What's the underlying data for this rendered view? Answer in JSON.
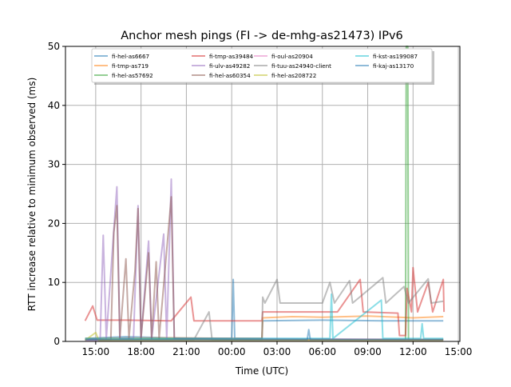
{
  "chart_data": {
    "type": "line",
    "title": "Anchor mesh pings (FI -> de-mhg-as21473) IPv6",
    "xlabel": "Time (UTC)",
    "ylabel": "RTT increase relative to minimum observed (ms)",
    "x_unit": "hours since 00:00 of first day",
    "xlim": [
      13.0,
      39.1
    ],
    "ylim": [
      0,
      50
    ],
    "grid": true,
    "legend_placement": "top-center",
    "xticks": [
      {
        "value": 15,
        "label": "15:00"
      },
      {
        "value": 18,
        "label": "18:00"
      },
      {
        "value": 21,
        "label": "21:00"
      },
      {
        "value": 24,
        "label": "00:00"
      },
      {
        "value": 27,
        "label": "03:00"
      },
      {
        "value": 30,
        "label": "06:00"
      },
      {
        "value": 33,
        "label": "09:00"
      },
      {
        "value": 36,
        "label": "12:00"
      },
      {
        "value": 39,
        "label": "15:00"
      }
    ],
    "yticks": [
      {
        "value": 0,
        "label": "0"
      },
      {
        "value": 10,
        "label": "10"
      },
      {
        "value": 20,
        "label": "20"
      },
      {
        "value": 30,
        "label": "30"
      },
      {
        "value": 40,
        "label": "40"
      },
      {
        "value": 50,
        "label": "50"
      }
    ],
    "series": [
      {
        "name": "fi-hel-as6667",
        "color": "#1f77b4",
        "points": [
          [
            14.3,
            0.5
          ],
          [
            17,
            0.8
          ],
          [
            20,
            0.6
          ],
          [
            24,
            0.5
          ],
          [
            24.1,
            10.5
          ],
          [
            24.2,
            0.5
          ],
          [
            26,
            0.5
          ],
          [
            26.05,
            3.5
          ],
          [
            30,
            3.6
          ],
          [
            34,
            3.5
          ],
          [
            38,
            3.5
          ]
        ]
      },
      {
        "name": "fi-tmp-as719",
        "color": "#ff7f0e",
        "points": [
          [
            14.3,
            0.5
          ],
          [
            20,
            0.6
          ],
          [
            26,
            0.5
          ],
          [
            26.05,
            4
          ],
          [
            28,
            4.2
          ],
          [
            30,
            4.1
          ],
          [
            33,
            4.3
          ],
          [
            36,
            4.0
          ],
          [
            38,
            4.2
          ]
        ]
      },
      {
        "name": "fi-hel-as57692",
        "color": "#2ca02c",
        "points": [
          [
            14.3,
            0.3
          ],
          [
            20,
            0.4
          ],
          [
            30,
            0.3
          ],
          [
            35.5,
            0.3
          ],
          [
            35.55,
            50
          ],
          [
            35.65,
            50
          ],
          [
            35.7,
            0.3
          ],
          [
            38,
            0.3
          ]
        ]
      },
      {
        "name": "fi-tmp-as39484",
        "color": "#d62728",
        "points": [
          [
            14.3,
            3.5
          ],
          [
            14.8,
            6
          ],
          [
            15.1,
            3.6
          ],
          [
            17,
            3.6
          ],
          [
            20,
            3.5
          ],
          [
            21.3,
            7.5
          ],
          [
            21.5,
            3.5
          ],
          [
            26,
            3.5
          ],
          [
            26.05,
            5
          ],
          [
            29,
            5
          ],
          [
            31,
            5
          ],
          [
            32.5,
            10.5
          ],
          [
            32.7,
            5
          ],
          [
            35,
            4.8
          ],
          [
            35.1,
            1
          ],
          [
            35.5,
            1
          ],
          [
            35.6,
            9
          ],
          [
            35.9,
            5
          ],
          [
            36,
            12.5
          ],
          [
            36.3,
            5
          ],
          [
            37,
            10
          ],
          [
            37.3,
            5
          ],
          [
            38,
            10.5
          ],
          [
            38.05,
            5
          ]
        ]
      },
      {
        "name": "fi-ulv-as49282",
        "color": "#9467bd",
        "points": [
          [
            14.3,
            0.3
          ],
          [
            15.3,
            0.5
          ],
          [
            15.5,
            18
          ],
          [
            15.7,
            0.5
          ],
          [
            16.2,
            19
          ],
          [
            16.4,
            26.2
          ],
          [
            16.6,
            0.5
          ],
          [
            17.5,
            0.5
          ],
          [
            17.8,
            23
          ],
          [
            18,
            0.5
          ],
          [
            18.5,
            17
          ],
          [
            18.7,
            0.5
          ],
          [
            19.5,
            18.2
          ],
          [
            19.7,
            0.5
          ],
          [
            20,
            27.5
          ],
          [
            20.2,
            0.5
          ],
          [
            23,
            0.5
          ],
          [
            38,
            0.3
          ]
        ]
      },
      {
        "name": "fi-hel-as60354",
        "color": "#8c564b",
        "points": [
          [
            14.3,
            0.3
          ],
          [
            16,
            0.3
          ],
          [
            16.2,
            18.5
          ],
          [
            16.4,
            23
          ],
          [
            16.6,
            0.5
          ],
          [
            17,
            14
          ],
          [
            17.2,
            0.5
          ],
          [
            17.6,
            12
          ],
          [
            17.8,
            22.5
          ],
          [
            18,
            0.5
          ],
          [
            18.5,
            15
          ],
          [
            18.7,
            0.5
          ],
          [
            19,
            13.5
          ],
          [
            19.2,
            0.5
          ],
          [
            20,
            24.5
          ],
          [
            20.2,
            0.5
          ],
          [
            23,
            0.3
          ],
          [
            38,
            0.3
          ]
        ]
      },
      {
        "name": "fi-oul-as20904",
        "color": "#e377c2",
        "points": [
          [
            14.3,
            0.2
          ],
          [
            25,
            0.2
          ],
          [
            38,
            0.2
          ]
        ]
      },
      {
        "name": "fi-tuu-as24940-client",
        "color": "#7f7f7f",
        "points": [
          [
            14.3,
            0.3
          ],
          [
            21.5,
            0.3
          ],
          [
            22.5,
            5
          ],
          [
            22.7,
            0.3
          ],
          [
            26,
            0.3
          ],
          [
            26.05,
            7.5
          ],
          [
            26.2,
            6.5
          ],
          [
            27,
            10.5
          ],
          [
            27.2,
            6.5
          ],
          [
            30,
            6.5
          ],
          [
            30.5,
            10
          ],
          [
            30.8,
            6.5
          ],
          [
            31.8,
            10.3
          ],
          [
            32,
            6.5
          ],
          [
            34,
            10.8
          ],
          [
            34.2,
            6.5
          ],
          [
            35.4,
            9.3
          ],
          [
            35.7,
            6.5
          ],
          [
            37,
            10.6
          ],
          [
            37.2,
            6.5
          ],
          [
            38,
            6.8
          ]
        ]
      },
      {
        "name": "fi-hel-as208722",
        "color": "#bcbd22",
        "points": [
          [
            14.3,
            0.2
          ],
          [
            15,
            1.5
          ],
          [
            15.2,
            0.2
          ],
          [
            38,
            0.2
          ]
        ]
      },
      {
        "name": "fi-kst-as199087",
        "color": "#17becf",
        "points": [
          [
            14.3,
            0.5
          ],
          [
            27,
            0.5
          ],
          [
            30.5,
            0.5
          ],
          [
            30.6,
            8
          ],
          [
            30.7,
            0.5
          ],
          [
            33.9,
            7
          ],
          [
            34,
            0.5
          ],
          [
            36.5,
            0.5
          ],
          [
            36.6,
            3
          ],
          [
            36.7,
            0.5
          ],
          [
            38,
            0.5
          ]
        ]
      },
      {
        "name": "fi-kaj-as13170",
        "color": "#1f77b4",
        "points": [
          [
            14.3,
            0.3
          ],
          [
            20,
            0.3
          ],
          [
            29,
            0.3
          ],
          [
            29.1,
            2
          ],
          [
            29.2,
            0.3
          ],
          [
            38,
            0.3
          ]
        ]
      }
    ]
  }
}
